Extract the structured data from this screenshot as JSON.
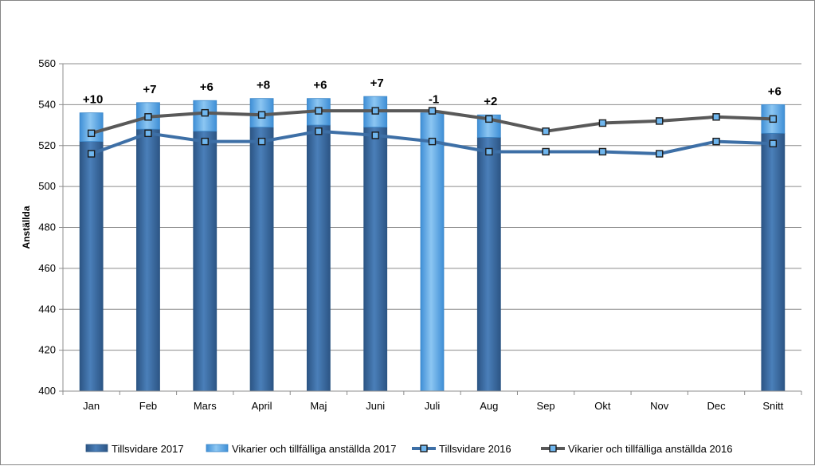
{
  "chart_data": {
    "type": "bar",
    "title": "",
    "xlabel": "",
    "ylabel": "Anställda",
    "ylim": [
      400,
      560
    ],
    "yticks": [
      400,
      420,
      440,
      460,
      480,
      500,
      520,
      540,
      560
    ],
    "grid": true,
    "legend_position": "bottom",
    "categories": [
      "Jan",
      "Feb",
      "Mars",
      "April",
      "Maj",
      "Juni",
      "Juli",
      "Aug",
      "Sep",
      "Okt",
      "Nov",
      "Dec",
      "Snitt"
    ],
    "series": [
      {
        "name": "Tillsvidare 2017",
        "kind": "stacked-bar",
        "color": "#3d6fa6",
        "values": [
          522,
          528,
          527,
          529,
          530,
          529,
          null,
          524,
          null,
          null,
          null,
          null,
          526
        ]
      },
      {
        "name": "Vikarier och tillfälliga anställda 2017",
        "kind": "stacked-bar",
        "color": "#5fa7e3",
        "values": [
          14,
          13,
          15,
          14,
          13,
          15,
          null,
          11,
          null,
          null,
          null,
          null,
          14
        ]
      },
      {
        "name": "Tillsvidare 2016",
        "kind": "line",
        "color": "#3d6fa6",
        "values": [
          516,
          526,
          522,
          522,
          527,
          525,
          522,
          517,
          517,
          517,
          516,
          522,
          521
        ]
      },
      {
        "name": "Vikarier och tillfälliga anställda 2016",
        "kind": "line",
        "color": "#595959",
        "values": [
          526,
          534,
          536,
          535,
          537,
          537,
          537,
          533,
          527,
          531,
          532,
          534,
          533
        ]
      }
    ],
    "bar_totals_2017": [
      536,
      541,
      542,
      543,
      543,
      544,
      536,
      535,
      null,
      null,
      null,
      null,
      540
    ],
    "data_labels": [
      "+10",
      "+7",
      "+6",
      "+8",
      "+6",
      "+7",
      "-1",
      "+2",
      "",
      "",
      "",
      "",
      "+6"
    ]
  }
}
